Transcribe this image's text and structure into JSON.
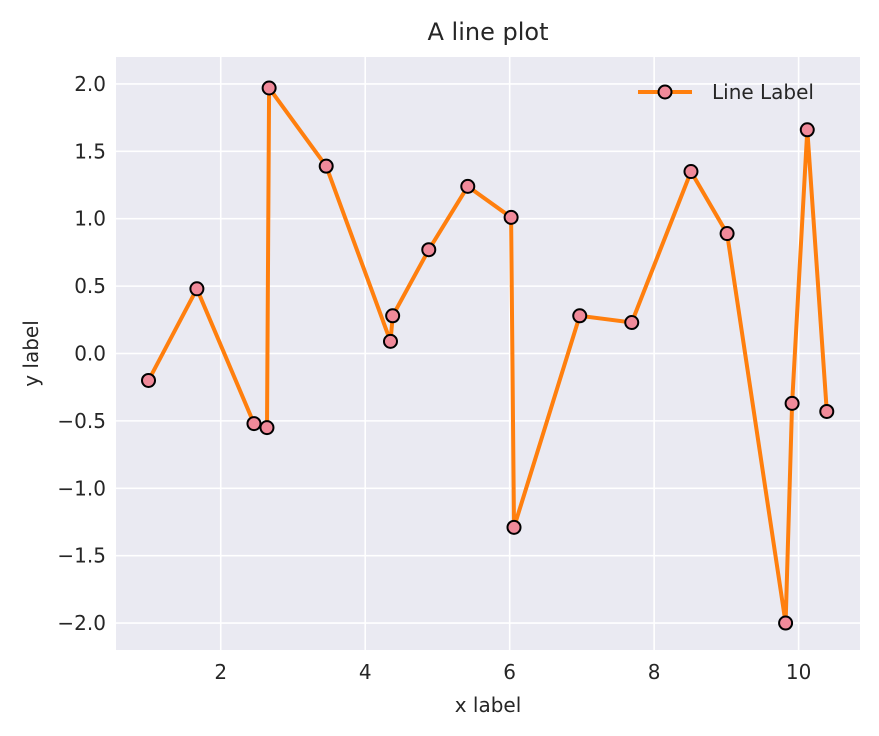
{
  "chart_data": {
    "type": "line",
    "title": "A line plot",
    "xlabel": "x label",
    "ylabel": "y label",
    "xlim": [
      0.55,
      10.85
    ],
    "ylim": [
      -2.2,
      2.2
    ],
    "x_ticks": [
      2,
      4,
      6,
      8,
      10
    ],
    "x_tick_labels": [
      "2",
      "4",
      "6",
      "8",
      "10"
    ],
    "y_ticks": [
      -2.0,
      -1.5,
      -1.0,
      -0.5,
      0.0,
      0.5,
      1.0,
      1.5,
      2.0
    ],
    "y_tick_labels": [
      "−2.0",
      "−1.5",
      "−1.0",
      "−0.5",
      "0.0",
      "0.5",
      "1.0",
      "1.5",
      "2.0"
    ],
    "grid": true,
    "legend_position": "top-right",
    "line_color": "#ff7f0e",
    "marker_face_color": "#f08a9a",
    "marker_edge_color": "#000000",
    "plot_background": "#eaeaf2",
    "series": [
      {
        "name": "Line Label",
        "x": [
          1.0,
          1.67,
          2.46,
          2.64,
          2.67,
          3.46,
          4.35,
          4.38,
          4.88,
          5.42,
          6.02,
          6.06,
          6.97,
          7.69,
          8.51,
          9.01,
          9.82,
          9.91,
          10.12,
          10.39
        ],
        "y": [
          -0.2,
          0.48,
          -0.52,
          -0.55,
          1.97,
          1.39,
          0.09,
          0.28,
          0.77,
          1.24,
          1.01,
          -1.29,
          0.28,
          0.23,
          1.35,
          0.89,
          -2.0,
          -0.37,
          1.66,
          -0.43
        ]
      }
    ]
  }
}
